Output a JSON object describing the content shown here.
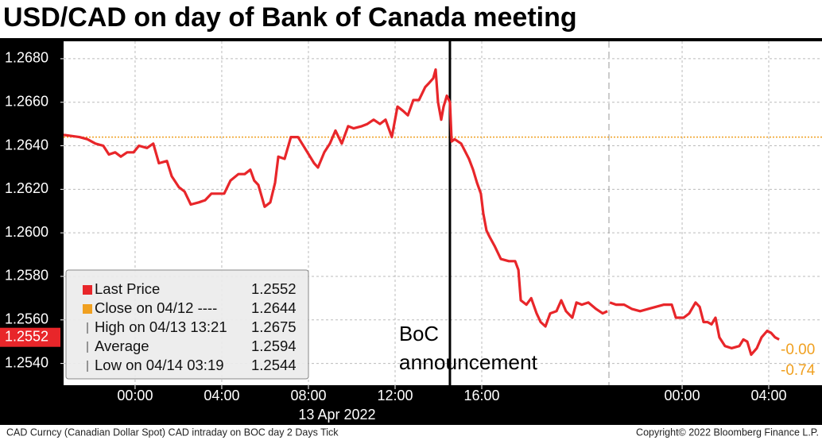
{
  "chart_data": {
    "type": "line",
    "title": "USD/CAD on day of Bank of Canada meeting",
    "ylim": [
      1.253,
      1.2688
    ],
    "yticks": [
      {
        "value": 1.254,
        "label": "1.2540"
      },
      {
        "value": 1.256,
        "label": "1.2560"
      },
      {
        "value": 1.258,
        "label": "1.2580"
      },
      {
        "value": 1.26,
        "label": "1.2600"
      },
      {
        "value": 1.262,
        "label": "1.2620"
      },
      {
        "value": 1.264,
        "label": "1.2640"
      },
      {
        "value": 1.266,
        "label": "1.2660"
      },
      {
        "value": 1.268,
        "label": "1.2680"
      }
    ],
    "xlim": [
      [
        -3.3,
        21.87
      ],
      [
        20.62,
        30.46
      ]
    ],
    "xticks": [
      {
        "value": 0,
        "label": "00:00"
      },
      {
        "value": 4,
        "label": "04:00"
      },
      {
        "value": 8,
        "label": "08:00"
      },
      {
        "value": 12,
        "label": "12:00"
      },
      {
        "value": 16,
        "label": "16:00"
      },
      {
        "value": 24,
        "label": "00:00"
      },
      {
        "value": 28,
        "label": "04:00"
      }
    ],
    "x_date_label": "13 Apr 2022",
    "grid": true,
    "series": [
      {
        "name": "Last Price",
        "color": "#e8262a",
        "x": [
          -3.3,
          -2.57,
          -2.2,
          -1.83,
          -1.47,
          -1.21,
          -0.92,
          -0.66,
          -0.37,
          -0.07,
          0.18,
          0.55,
          0.84,
          1.1,
          1.47,
          1.69,
          2.02,
          2.28,
          2.57,
          2.94,
          3.23,
          3.52,
          3.85,
          4.11,
          4.4,
          4.77,
          5.06,
          5.32,
          5.5,
          5.69,
          5.98,
          6.24,
          6.46,
          6.61,
          6.9,
          7.19,
          7.52,
          7.89,
          8.26,
          8.44,
          8.73,
          8.99,
          9.25,
          9.54,
          9.83,
          10.09,
          10.46,
          10.72,
          11.01,
          11.3,
          11.56,
          11.85,
          12.11,
          12.37,
          12.59,
          12.84,
          13.1,
          13.39,
          13.58,
          13.76,
          13.87,
          13.98,
          14.13,
          14.24,
          14.39,
          14.53,
          14.61,
          14.75,
          15.05,
          15.41,
          15.6,
          15.78,
          15.96,
          16.07,
          16.22,
          16.37,
          16.59,
          16.88,
          17.25,
          17.54,
          17.69,
          17.8,
          18.06,
          18.28,
          18.53,
          18.72,
          18.94,
          19.16,
          19.45,
          19.67,
          19.89,
          20.18,
          20.37,
          20.62,
          20.92,
          21.28,
          21.58,
          21.8,
          null,
          20.66,
          20.95,
          21.32,
          21.69,
          22.06,
          22.42,
          22.79,
          23.16,
          23.52,
          23.71,
          24.07,
          24.33,
          24.62,
          24.81,
          24.99,
          25.17,
          25.36,
          25.54,
          25.72,
          25.98,
          26.28,
          26.64,
          26.83,
          27.01,
          27.19,
          27.45,
          27.67,
          27.93,
          28.11,
          28.29,
          28.48
        ],
        "values": [
          1.2645,
          1.2644,
          1.2643,
          1.2641,
          1.264,
          1.2636,
          1.2637,
          1.2635,
          1.2637,
          1.2637,
          1.264,
          1.2639,
          1.2641,
          1.2632,
          1.2633,
          1.2626,
          1.2621,
          1.2619,
          1.2613,
          1.2614,
          1.2615,
          1.2618,
          1.2618,
          1.2618,
          1.2624,
          1.2627,
          1.2627,
          1.2629,
          1.2624,
          1.2622,
          1.2612,
          1.2614,
          1.2623,
          1.2635,
          1.2634,
          1.2644,
          1.2644,
          1.2638,
          1.2632,
          1.263,
          1.2637,
          1.2641,
          1.2647,
          1.2641,
          1.2649,
          1.2648,
          1.2649,
          1.265,
          1.2652,
          1.265,
          1.2652,
          1.2644,
          1.2658,
          1.2656,
          1.2654,
          1.2661,
          1.2661,
          1.2667,
          1.2669,
          1.2671,
          1.2675,
          1.266,
          1.2652,
          1.2658,
          1.2663,
          1.266,
          1.2642,
          1.2643,
          1.2641,
          1.2634,
          1.2629,
          1.2623,
          1.2618,
          1.2609,
          1.2601,
          1.2598,
          1.2594,
          1.2588,
          1.2587,
          1.2587,
          1.2583,
          1.2569,
          1.2567,
          1.257,
          1.2563,
          1.2559,
          1.2557,
          1.2563,
          1.2564,
          1.2569,
          1.2564,
          1.2561,
          1.2568,
          1.2567,
          1.2568,
          1.2565,
          1.2563,
          1.2564,
          null,
          1.2568,
          1.2567,
          1.2567,
          1.2565,
          1.2564,
          1.2565,
          1.2566,
          1.2567,
          1.2567,
          1.2561,
          1.2561,
          1.2563,
          1.2568,
          1.2566,
          1.2559,
          1.2559,
          1.2558,
          1.2561,
          1.2552,
          1.2548,
          1.2547,
          1.2548,
          1.2551,
          1.255,
          1.2544,
          1.2547,
          1.2552,
          1.2555,
          1.2554,
          1.2552,
          1.2551
        ]
      }
    ],
    "last_value": 1.2552,
    "legend_items": [
      {
        "name": "Close on 04/12 ----",
        "value": 1.2644,
        "color": "#f0a020"
      },
      {
        "name": "High on 04/13 13:21",
        "value": 1.2675
      },
      {
        "name": "Average",
        "value": 1.2594
      },
      {
        "name": "Low on 04/14 03:19",
        "value": 1.2544
      }
    ],
    "annotation": {
      "text": [
        "BoC",
        "announcement"
      ],
      "x": 14.53
    },
    "right_labels": [
      "-0.00",
      "-0.74"
    ],
    "right_label_color": "#f0a020",
    "footer_left": "CAD Curncy (Canadian Dollar Spot) CAD intraday on BOC day 2 Days  Tick",
    "footer_right": "Copyright© 2022 Bloomberg Finance L.P."
  }
}
